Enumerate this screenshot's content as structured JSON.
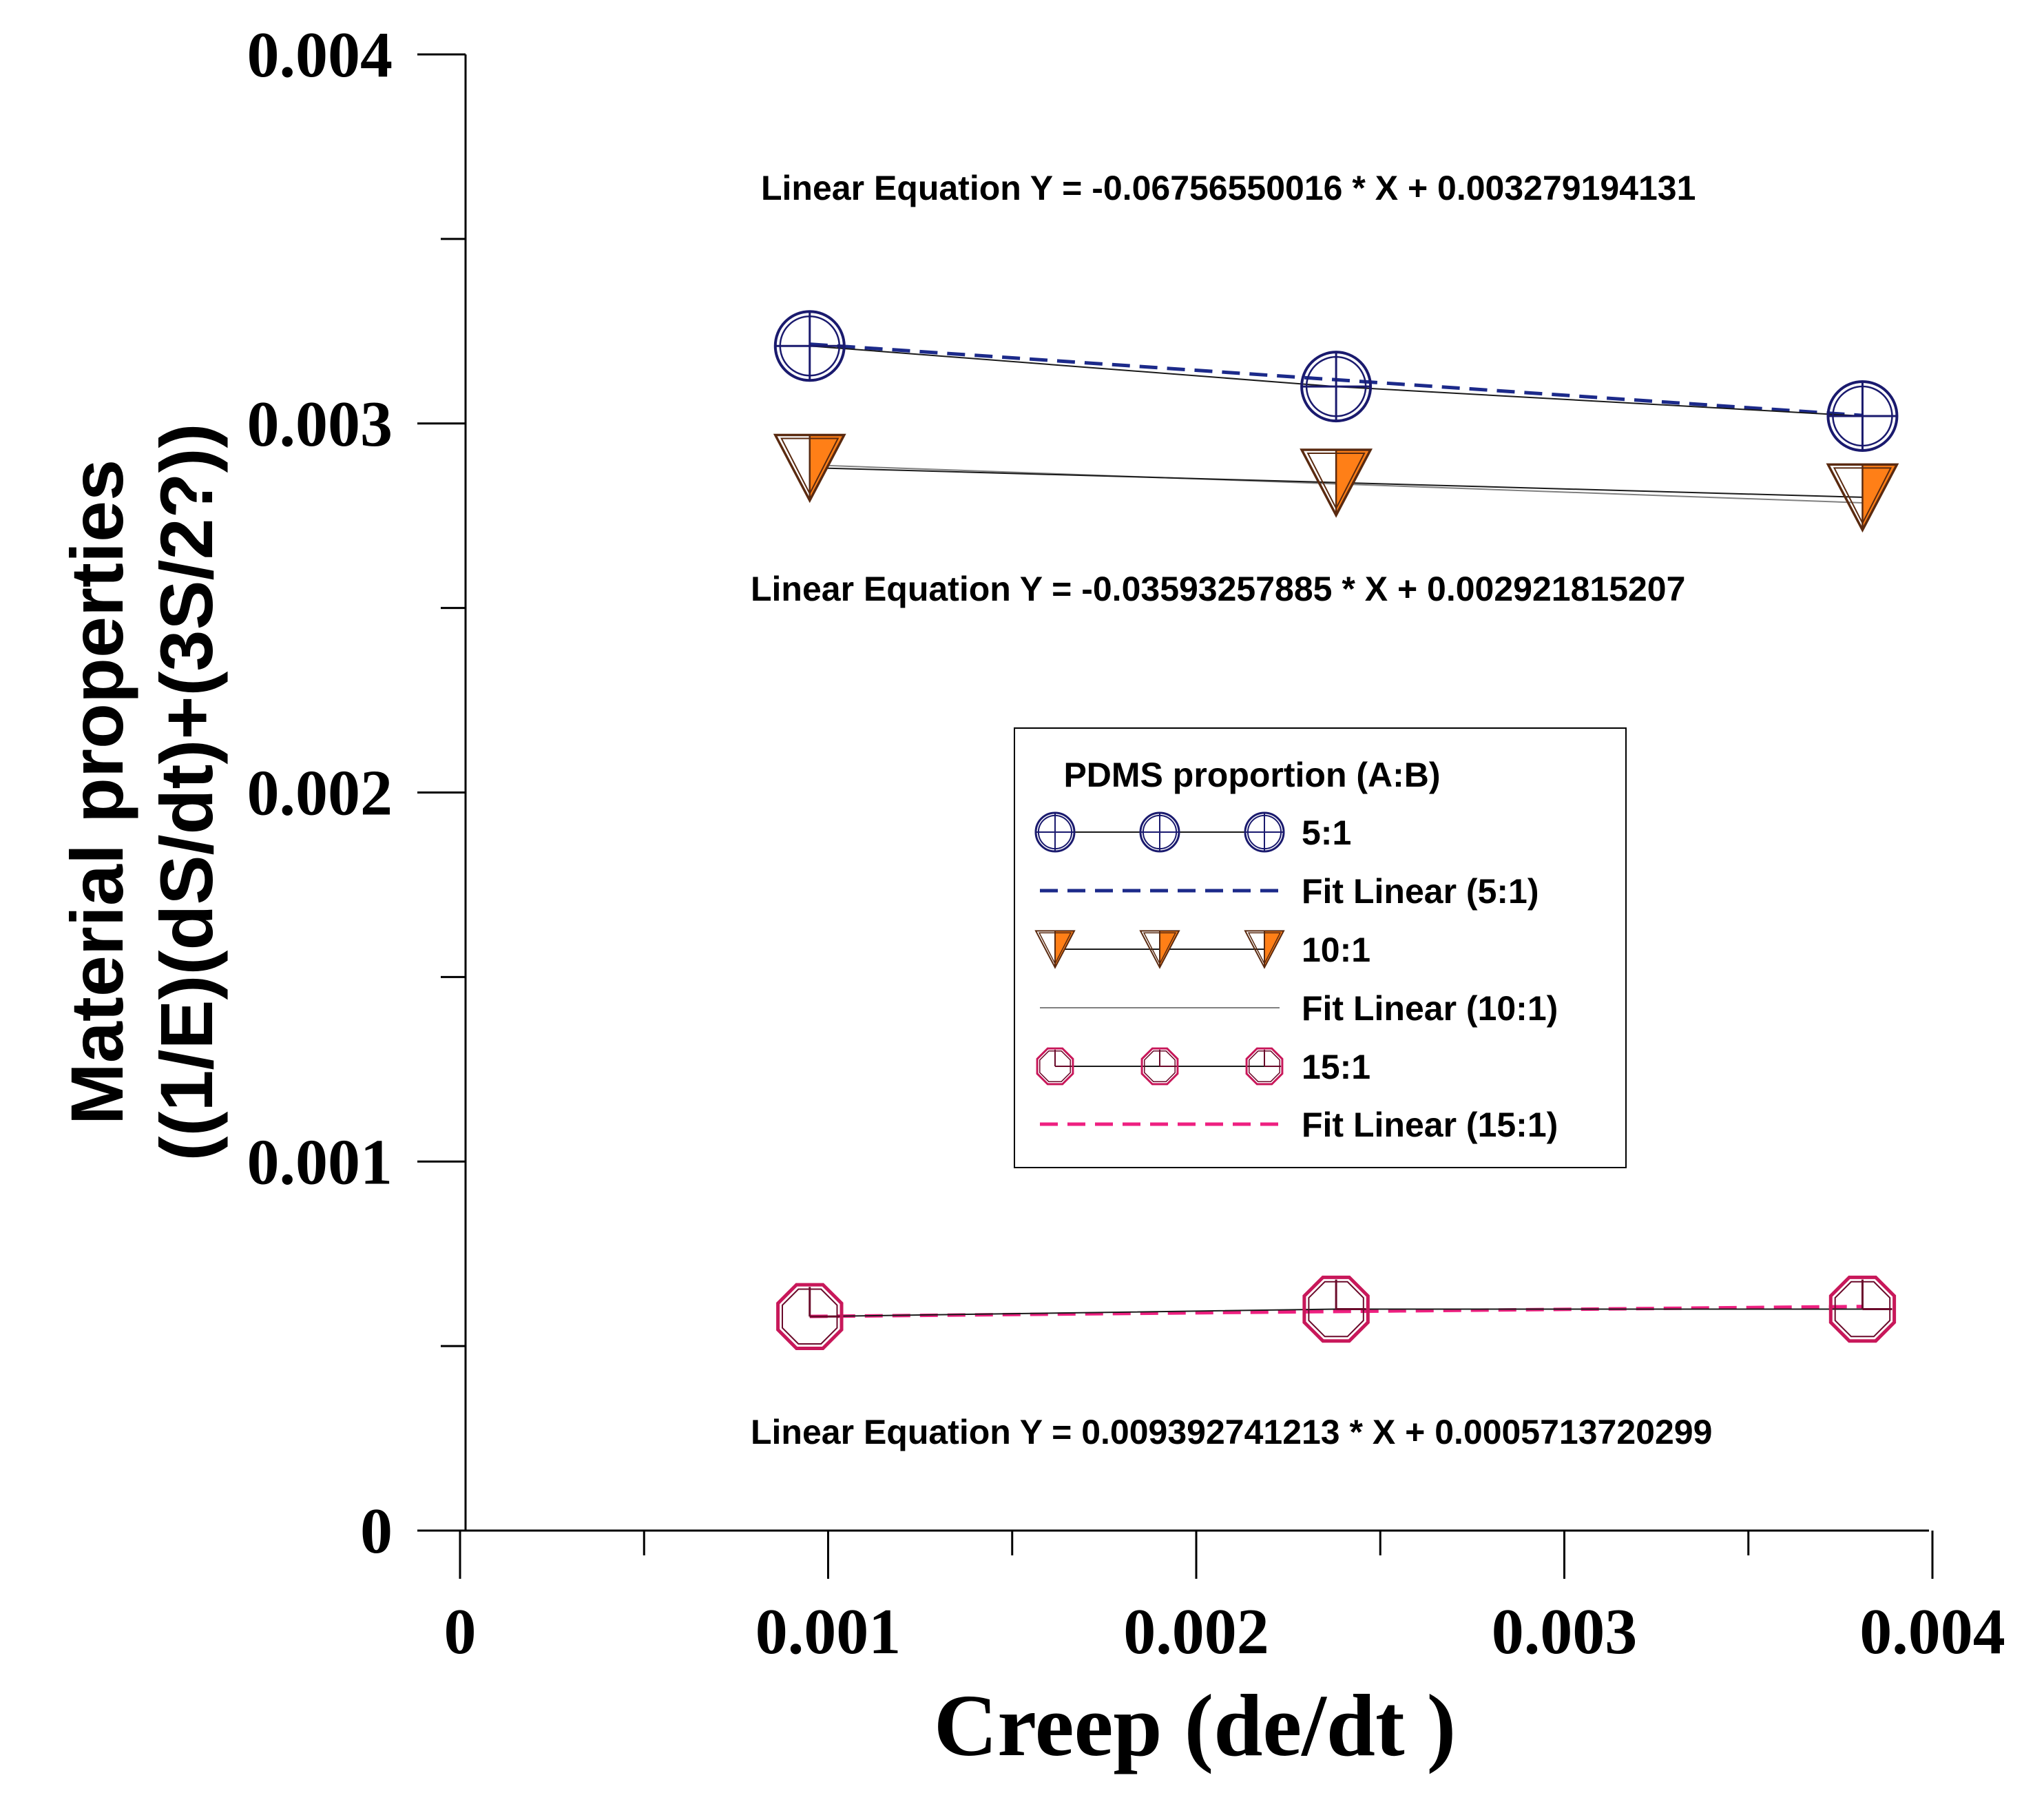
{
  "chart_data": {
    "type": "line",
    "xlabel": "Creep (de/dt )",
    "ylabel_line1": "Material properties",
    "ylabel_line2": "((1/E)(dS/dt)+(3S/2?))",
    "xlim": [
      0,
      0.004
    ],
    "ylim": [
      0,
      0.004
    ],
    "x_ticks": [
      0,
      0.001,
      0.002,
      0.003,
      0.004
    ],
    "x_tick_labels": [
      "0",
      "0.001",
      "0.002",
      "0.003",
      "0.004"
    ],
    "y_ticks": [
      0,
      0.001,
      0.002,
      0.003,
      0.004
    ],
    "y_tick_labels": [
      "0",
      "0.001",
      "0.002",
      "0.003",
      "0.004"
    ],
    "grid": false,
    "legend": {
      "title": "PDMS proportion (A:B)",
      "position": "center",
      "entries": [
        "5:1",
        "Fit Linear (5:1)",
        "10:1",
        "Fit Linear (10:1)",
        "15:1",
        "Fit Linear (15:1)"
      ]
    },
    "series": [
      {
        "name": "5:1",
        "marker": "circle-plus",
        "color": "#1a1a6e",
        "x": [
          0.00095,
          0.00238,
          0.00381
        ],
        "y": [
          0.00321,
          0.0031,
          0.00302
        ],
        "fit_name": "Fit Linear (5:1)",
        "fit_color": "#1c2a8a",
        "fit_style": "dashed",
        "fit_slope": -0.06756550016,
        "fit_intercept": 0.003279194131,
        "equation": "Linear Equation Y = -0.06756550016 * X + 0.003279194131"
      },
      {
        "name": "10:1",
        "marker": "triangle-half",
        "color": "#ff7f17",
        "x": [
          0.00095,
          0.00238,
          0.00381
        ],
        "y": [
          0.00288,
          0.00284,
          0.0028
        ],
        "fit_name": "Fit Linear (10:1)",
        "fit_color": "#808080",
        "fit_style": "solid",
        "fit_slope": -0.03593257885,
        "fit_intercept": 0.002921815207,
        "equation": "Linear Equation Y = -0.03593257885 * X + 0.002921815207"
      },
      {
        "name": "15:1",
        "marker": "octagon-clock",
        "color": "#c8185a",
        "x": [
          0.00095,
          0.00238,
          0.00381
        ],
        "y": [
          0.00058,
          0.0006,
          0.0006
        ],
        "fit_name": "Fit Linear (15:1)",
        "fit_color": "#ee2080",
        "fit_style": "dashed",
        "fit_slope": 0.009392741213,
        "fit_intercept": 0.0005713720299,
        "equation": "Linear Equation Y = 0.009392741213 * X + 0.0005713720299"
      }
    ]
  }
}
